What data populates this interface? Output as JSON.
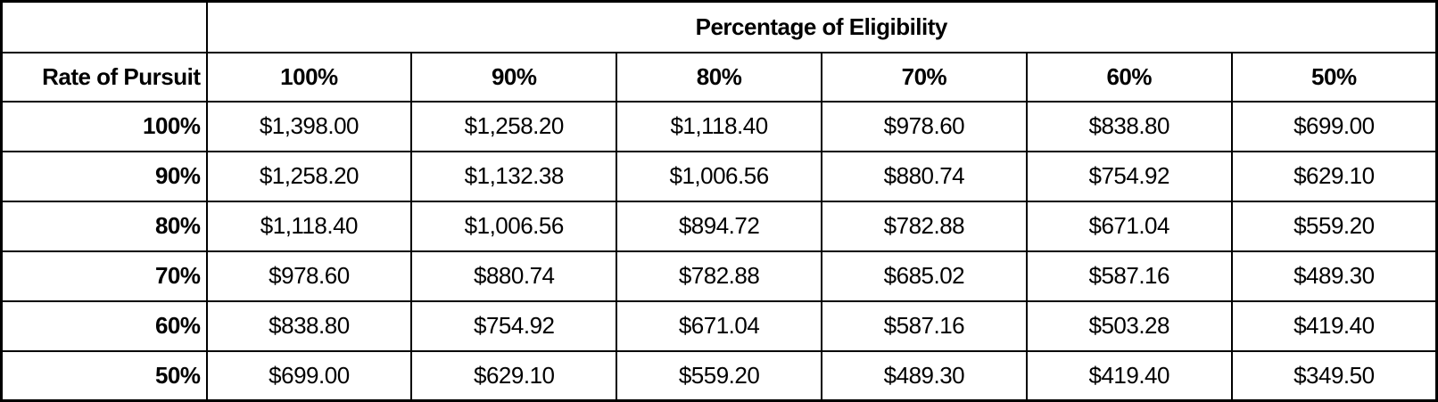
{
  "table": {
    "top_header": "Percentage of Eligibility",
    "row_header_label": "Rate of Pursuit",
    "column_headers": [
      "100%",
      "90%",
      "80%",
      "70%",
      "60%",
      "50%"
    ],
    "rows": [
      {
        "label": "100%",
        "values": [
          "$1,398.00",
          "$1,258.20",
          "$1,118.40",
          "$978.60",
          "$838.80",
          "$699.00"
        ]
      },
      {
        "label": "90%",
        "values": [
          "$1,258.20",
          "$1,132.38",
          "$1,006.56",
          "$880.74",
          "$754.92",
          "$629.10"
        ]
      },
      {
        "label": "80%",
        "values": [
          "$1,118.40",
          "$1,006.56",
          "$894.72",
          "$782.88",
          "$671.04",
          "$559.20"
        ]
      },
      {
        "label": "70%",
        "values": [
          "$978.60",
          "$880.74",
          "$782.88",
          "$685.02",
          "$587.16",
          "$489.30"
        ]
      },
      {
        "label": "60%",
        "values": [
          "$838.80",
          "$754.92",
          "$671.04",
          "$587.16",
          "$503.28",
          "$419.40"
        ]
      },
      {
        "label": "50%",
        "values": [
          "$699.00",
          "$629.10",
          "$559.20",
          "$489.30",
          "$419.40",
          "$349.50"
        ]
      }
    ]
  },
  "chart_data": {
    "type": "table",
    "title": "Percentage of Eligibility",
    "row_axis_label": "Rate of Pursuit",
    "columns": [
      "100%",
      "90%",
      "80%",
      "70%",
      "60%",
      "50%"
    ],
    "row_labels": [
      "100%",
      "90%",
      "80%",
      "70%",
      "60%",
      "50%"
    ],
    "values": [
      [
        1398.0,
        1258.2,
        1118.4,
        978.6,
        838.8,
        699.0
      ],
      [
        1258.2,
        1132.38,
        1006.56,
        880.74,
        754.92,
        629.1
      ],
      [
        1118.4,
        1006.56,
        894.72,
        782.88,
        671.04,
        559.2
      ],
      [
        978.6,
        880.74,
        782.88,
        685.02,
        587.16,
        489.3
      ],
      [
        838.8,
        754.92,
        671.04,
        587.16,
        503.28,
        419.4
      ],
      [
        699.0,
        629.1,
        559.2,
        489.3,
        419.4,
        349.5
      ]
    ],
    "value_format": "USD currency, 2 decimals",
    "layout": "matrix of dollar amounts; rows = Rate of Pursuit, columns = Percentage of Eligibility"
  },
  "colors": {
    "border": "#000000",
    "text": "#000000",
    "background": "#ffffff"
  }
}
